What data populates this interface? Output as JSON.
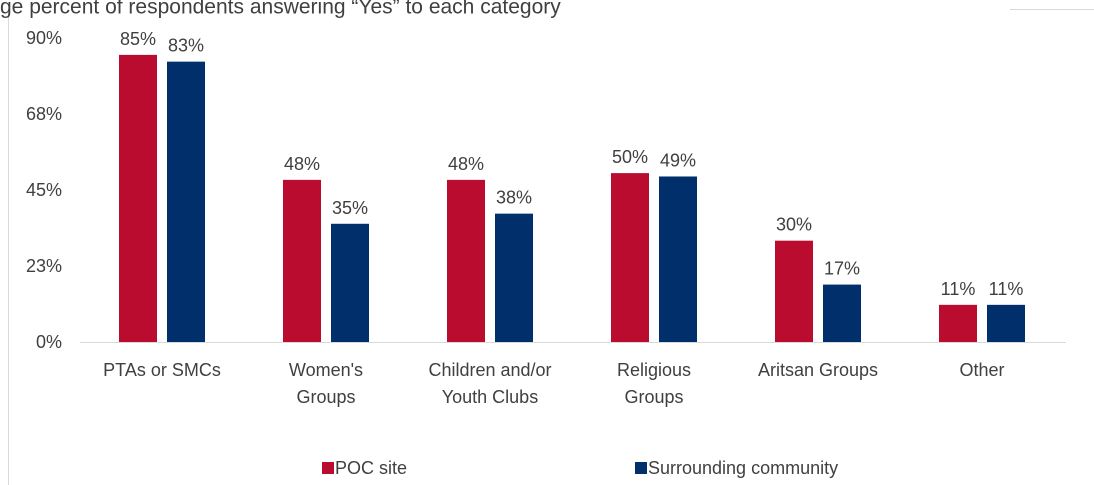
{
  "chart_data": {
    "type": "bar",
    "title": "ge percent of respondents answering “Yes” to each category",
    "categories": [
      [
        "PTAs or SMCs"
      ],
      [
        "Women's",
        "Groups"
      ],
      [
        "Children and/or",
        "Youth Clubs"
      ],
      [
        "Religious",
        "Groups"
      ],
      [
        "Aritsan Groups"
      ],
      [
        "Other"
      ]
    ],
    "series": [
      {
        "name": "POC site",
        "color": "#BA0C2F",
        "values": [
          85,
          48,
          48,
          50,
          30,
          11
        ],
        "labels": [
          "85%",
          "48%",
          "48%",
          "50%",
          "30%",
          "11%"
        ]
      },
      {
        "name": "Surrounding community",
        "color": "#002F6C",
        "values": [
          83,
          35,
          38,
          49,
          17,
          11
        ],
        "labels": [
          "83%",
          "35%",
          "38%",
          "49%",
          "17%",
          "11%"
        ]
      }
    ],
    "y_ticks": [
      {
        "value": 0,
        "label": "0%"
      },
      {
        "value": 22.5,
        "label": "23%"
      },
      {
        "value": 45,
        "label": "45%"
      },
      {
        "value": 67.5,
        "label": "68%"
      },
      {
        "value": 90,
        "label": "90%"
      }
    ],
    "ylim": [
      0,
      90
    ],
    "grid": false,
    "legend_position": "bottom"
  }
}
